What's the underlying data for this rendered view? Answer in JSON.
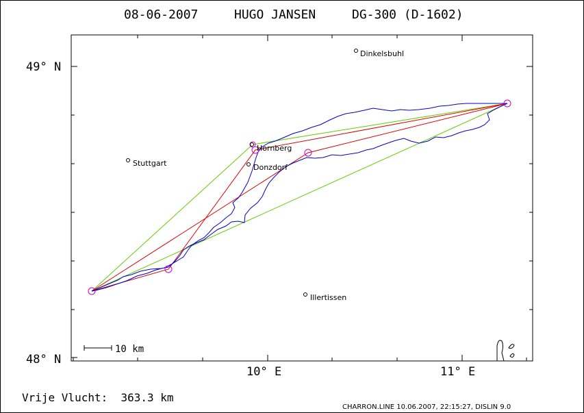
{
  "header": {
    "date": "08-06-2007",
    "pilot": "HUGO JANSEN",
    "glider": "DG-300 (D-1602)"
  },
  "axes": {
    "lat_labels": [
      "49° N",
      "48° N"
    ],
    "lon_labels": [
      "10° E",
      "11° E"
    ]
  },
  "scale_bar": {
    "label": "10 km"
  },
  "towns": [
    {
      "name": "Dinkelsbuhl"
    },
    {
      "name": "Stuttgart"
    },
    {
      "name": "Hornberg"
    },
    {
      "name": "Donzdorf"
    },
    {
      "name": "Illertissen"
    }
  ],
  "footer": {
    "distance": "Vrije Vlucht:  363.3 km",
    "stamp": "CHARRON.LINE 10.06.2007, 22:15:27, DISLIN 9.0"
  },
  "colors": {
    "track": "#0000cc",
    "route_red": "#dd0000",
    "route_green": "#66cc00",
    "turnpoint": "#cc00cc",
    "frame": "#000000"
  }
}
